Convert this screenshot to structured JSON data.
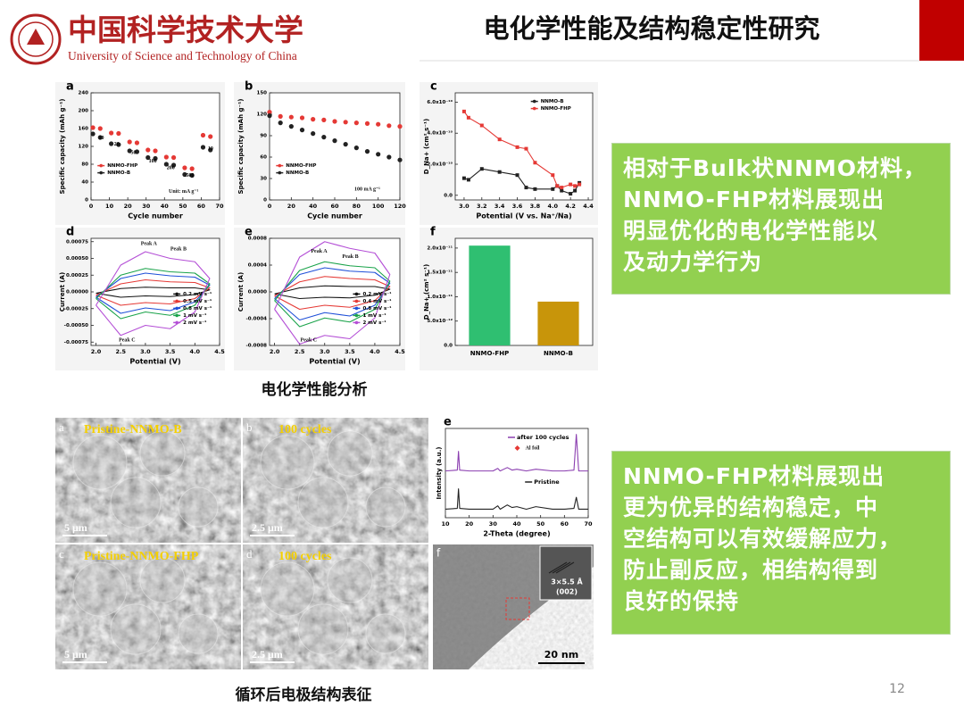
{
  "header": {
    "school_cn": "中国科学技术大学",
    "school_en": "University of Science and Technology of China",
    "title": "电化学性能及结构稳定性研究"
  },
  "chart_data": [
    {
      "type": "scatter",
      "label": "a",
      "xlabel": "Cycle number",
      "ylabel": "Specific capacity (mAh g⁻¹)",
      "xlim": [
        0,
        70
      ],
      "xticks": [
        0,
        10,
        20,
        30,
        40,
        50,
        60,
        70
      ],
      "ylim": [
        0,
        240
      ],
      "yticks": [
        0,
        40,
        80,
        120,
        160,
        200,
        240
      ],
      "legend": "lower left",
      "x": [
        1,
        5,
        11,
        15,
        21,
        25,
        31,
        35,
        41,
        45,
        51,
        55,
        61,
        65
      ],
      "series": [
        {
          "name": "NNMO-FHP",
          "color": "#e53935",
          "values": [
            162,
            160,
            150,
            149,
            130,
            128,
            112,
            110,
            96,
            95,
            72,
            70,
            145,
            142
          ]
        },
        {
          "name": "NNMO-B",
          "color": "#222222",
          "values": [
            148,
            140,
            126,
            124,
            110,
            108,
            95,
            93,
            80,
            78,
            57,
            55,
            118,
            112
          ]
        }
      ],
      "annotations": [
        "10",
        "20",
        "50",
        "100",
        "200",
        "500",
        "10",
        "Unit: mA g⁻¹"
      ]
    },
    {
      "type": "scatter",
      "label": "b",
      "xlabel": "Cycle number",
      "ylabel": "Specific capacity (mAh g⁻¹)",
      "xlim": [
        0,
        120
      ],
      "xticks": [
        0,
        20,
        40,
        60,
        80,
        100,
        120
      ],
      "ylim": [
        0,
        150
      ],
      "yticks": [
        0,
        30,
        60,
        90,
        120,
        150
      ],
      "legend": "lower left",
      "x": [
        0,
        10,
        20,
        30,
        40,
        50,
        60,
        70,
        80,
        90,
        100,
        110,
        120
      ],
      "series": [
        {
          "name": "NNMO-FHP",
          "color": "#e53935",
          "values": [
            123,
            117,
            116,
            115,
            113,
            112,
            110,
            109,
            108,
            107,
            106,
            104,
            103
          ]
        },
        {
          "name": "NNMO-B",
          "color": "#222222",
          "values": [
            118,
            108,
            103,
            98,
            93,
            88,
            83,
            78,
            73,
            68,
            64,
            60,
            56
          ]
        }
      ],
      "annotations": [
        "100 mA g⁻¹"
      ]
    },
    {
      "type": "line",
      "label": "c",
      "markers": true,
      "xlabel": "Potential (V vs. Na⁺/Na)",
      "ylabel": "D_Na+ (cm² s⁻¹)",
      "xlim": [
        2.9,
        4.45
      ],
      "xticks": [
        {
          "value": 3.0,
          "label": "3.0"
        },
        {
          "value": 3.2,
          "label": "3.2"
        },
        {
          "value": 3.4,
          "label": "3.4"
        },
        {
          "value": 3.6,
          "label": "3.6"
        },
        {
          "value": 3.8,
          "label": "3.8"
        },
        {
          "value": 4.0,
          "label": "4.0"
        },
        {
          "value": 4.2,
          "label": "4.2"
        },
        {
          "value": 4.4,
          "label": "4.4"
        }
      ],
      "ylim": [
        -3e-11,
        6.6e-10
      ],
      "yticks": [
        {
          "value": 0,
          "label": "0.0"
        },
        {
          "value": 2e-10,
          "label": "2.0x10⁻¹⁰"
        },
        {
          "value": 4e-10,
          "label": "4.0x10⁻¹⁰"
        },
        {
          "value": 6e-10,
          "label": "6.0x10⁻¹⁰"
        }
      ],
      "legend": "upper right",
      "x": [
        3.0,
        3.05,
        3.2,
        3.4,
        3.6,
        3.7,
        3.8,
        4.0,
        4.05,
        4.1,
        4.2,
        4.25,
        4.3
      ],
      "series": [
        {
          "name": "NNMO-B",
          "color": "#222222",
          "values": [
            1.1e-10,
            1e-10,
            1.7e-10,
            1.5e-10,
            1.3e-10,
            5e-11,
            4e-11,
            4e-11,
            6e-11,
            3e-11,
            1e-11,
            3e-11,
            8e-11
          ]
        },
        {
          "name": "NNMO-FHP",
          "color": "#e53935",
          "values": [
            5.4e-10,
            5e-10,
            4.5e-10,
            3.6e-10,
            3.1e-10,
            3e-10,
            2.1e-10,
            1.3e-10,
            6e-11,
            5e-11,
            7e-11,
            6e-11,
            7e-11
          ]
        }
      ]
    },
    {
      "type": "line",
      "label": "d",
      "xlabel": "Potential (V)",
      "ylabel": "Current (A)",
      "xlim": [
        1.9,
        4.5
      ],
      "xticks": [
        {
          "value": 2.0,
          "label": "2.0"
        },
        {
          "value": 2.5,
          "label": "2.5"
        },
        {
          "value": 3.0,
          "label": "3.0"
        },
        {
          "value": 3.5,
          "label": "3.5"
        },
        {
          "value": 4.0,
          "label": "4.0"
        },
        {
          "value": 4.5,
          "label": "4.5"
        }
      ],
      "ylim": [
        -0.0008,
        0.0008
      ],
      "yticks": [
        {
          "value": -0.00075,
          "label": "-0.00075"
        },
        {
          "value": -0.0005,
          "label": "-0.00050"
        },
        {
          "value": -0.00025,
          "label": "-0.00025"
        },
        {
          "value": 0,
          "label": "0.00000"
        },
        {
          "value": 0.00025,
          "label": "0.00025"
        },
        {
          "value": 0.0005,
          "label": "0.00050"
        },
        {
          "value": 0.00075,
          "label": "0.00075"
        }
      ],
      "legend": "lower right",
      "x": [
        2.0,
        2.5,
        3.0,
        3.5,
        4.0,
        4.3,
        4.0,
        3.5,
        3.0,
        2.5,
        2.0
      ],
      "series": [
        {
          "name": "0.2 mV s⁻¹",
          "color": "#111111",
          "values": [
            -2e-05,
            5e-05,
            7e-05,
            6e-05,
            6e-05,
            3e-05,
            -4e-05,
            -7e-05,
            -6e-05,
            -8e-05,
            -2e-05
          ]
        },
        {
          "name": "0.5 mV s⁻¹",
          "color": "#e53935",
          "values": [
            -5e-05,
            0.00012,
            0.00018,
            0.00015,
            0.00014,
            6e-05,
            -0.0001,
            -0.00018,
            -0.00016,
            -0.0002,
            -5e-05
          ]
        },
        {
          "name": "0.8 mV s⁻¹",
          "color": "#1e4fd8",
          "values": [
            -8e-05,
            0.0002,
            0.00028,
            0.00024,
            0.00022,
            0.0001,
            -0.00015,
            -0.00028,
            -0.00024,
            -0.00032,
            -8e-05
          ]
        },
        {
          "name": "1 mV s⁻¹",
          "color": "#1aa34a",
          "values": [
            -0.0001,
            0.00025,
            0.00035,
            0.0003,
            0.00028,
            0.00012,
            -0.0002,
            -0.00035,
            -0.0003,
            -0.0004,
            -0.0001
          ]
        },
        {
          "name": "2 mV s⁻¹",
          "color": "#b44fd6",
          "values": [
            -0.0002,
            0.0004,
            0.0006,
            0.0005,
            0.00045,
            0.0002,
            -0.0003,
            -0.00055,
            -0.0005,
            -0.00065,
            -0.0002
          ]
        }
      ],
      "annotations": [
        "Peak A",
        "Peak B",
        "Peak C"
      ]
    },
    {
      "type": "line",
      "label": "e",
      "xlabel": "Potential (V)",
      "ylabel": "Current (A)",
      "xlim": [
        1.9,
        4.5
      ],
      "xticks": [
        {
          "value": 2.0,
          "label": "2.0"
        },
        {
          "value": 2.5,
          "label": "2.5"
        },
        {
          "value": 3.0,
          "label": "3.0"
        },
        {
          "value": 3.5,
          "label": "3.5"
        },
        {
          "value": 4.0,
          "label": "4.0"
        },
        {
          "value": 4.5,
          "label": "4.5"
        }
      ],
      "ylim": [
        -0.0008,
        0.0008
      ],
      "yticks": [
        {
          "value": -0.0008,
          "label": "-0.0008"
        },
        {
          "value": -0.0004,
          "label": "-0.0004"
        },
        {
          "value": 0,
          "label": "0.0000"
        },
        {
          "value": 0.0004,
          "label": "0.0004"
        },
        {
          "value": 0.0008,
          "label": "0.0008"
        }
      ],
      "legend": "lower right",
      "x": [
        2.0,
        2.5,
        3.0,
        3.5,
        4.0,
        4.3,
        4.0,
        3.5,
        3.0,
        2.5,
        2.0
      ],
      "series": [
        {
          "name": "0.2 mV s⁻¹",
          "color": "#111111",
          "values": [
            -3e-05,
            6e-05,
            9e-05,
            8e-05,
            8e-05,
            4e-05,
            -5e-05,
            -9e-05,
            -8e-05,
            -0.0001,
            -3e-05
          ]
        },
        {
          "name": "0.4 mV s⁻¹",
          "color": "#e53935",
          "values": [
            -6e-05,
            0.00015,
            0.00023,
            0.0002,
            0.00018,
            8e-05,
            -0.00013,
            -0.00023,
            -0.0002,
            -0.00026,
            -6e-05
          ]
        },
        {
          "name": "0.8 mV s⁻¹",
          "color": "#1e4fd8",
          "values": [
            -0.0001,
            0.00026,
            0.00036,
            0.00031,
            0.00029,
            0.00013,
            -0.0002,
            -0.00036,
            -0.00031,
            -0.00042,
            -0.0001
          ]
        },
        {
          "name": "1 mV s⁻¹",
          "color": "#1aa34a",
          "values": [
            -0.00013,
            0.00032,
            0.00045,
            0.00039,
            0.00036,
            0.00016,
            -0.00026,
            -0.00045,
            -0.00039,
            -0.00052,
            -0.00013
          ]
        },
        {
          "name": "2 mV s⁻¹",
          "color": "#b44fd6",
          "values": [
            -0.00026,
            0.00052,
            0.00075,
            0.00065,
            0.00058,
            0.00026,
            -0.00039,
            -0.0007,
            -0.00065,
            -0.00078,
            -0.00026
          ]
        }
      ],
      "annotations": [
        "Peak A",
        "Peak B",
        "Peak C"
      ]
    },
    {
      "type": "bar",
      "label": "f",
      "ylabel": "D_Na+ (cm² s⁻¹)",
      "categories": [
        "NNMO-FHP",
        "NNMO-B"
      ],
      "values": [
        2.05e-11,
        9e-12
      ],
      "colors": [
        "#2fbf71",
        "#c8950a"
      ],
      "ylim": [
        0,
        2.2e-11
      ],
      "yticks": [
        {
          "value": 0,
          "label": "0.0"
        },
        {
          "value": 5e-12,
          "label": "5.0x10⁻¹²"
        },
        {
          "value": 1e-11,
          "label": "1.0x10⁻¹¹"
        },
        {
          "value": 1.5e-11,
          "label": "1.5x10⁻¹¹"
        },
        {
          "value": 2e-11,
          "label": "2.0x10⁻¹¹"
        }
      ]
    },
    {
      "type": "line",
      "label": "e",
      "xlabel": "2-Theta (degree)",
      "ylabel": "Intensity (a.u.)",
      "xlim": [
        10,
        70
      ],
      "xticks": [
        10,
        20,
        30,
        40,
        50,
        60,
        70
      ],
      "ylim": [
        0,
        10.5
      ],
      "yticks": [],
      "legend": "inline",
      "x": [
        10,
        15,
        15.5,
        16,
        20,
        25,
        30,
        32,
        33,
        36,
        38,
        40,
        44,
        48,
        55,
        60,
        64,
        65,
        66,
        70
      ],
      "series": [
        {
          "name": "after 100 cycles",
          "color": "#8b3fb0",
          "values": [
            5.5,
            5.6,
            7.8,
            5.6,
            5.5,
            5.5,
            5.5,
            5.8,
            5.5,
            5.9,
            5.6,
            5.7,
            5.5,
            5.7,
            5.5,
            5.5,
            5.6,
            9.8,
            5.5,
            5.5
          ]
        },
        {
          "name": "Pristine",
          "color": "#222222",
          "values": [
            1,
            1.1,
            3.4,
            1.1,
            1,
            1,
            1,
            1.4,
            1,
            1.5,
            1.2,
            1.3,
            1,
            1.3,
            1,
            1,
            1.1,
            2.4,
            1,
            1
          ]
        }
      ],
      "annotations": [
        "Al foil"
      ]
    }
  ],
  "top_caption": "电化学性能分析",
  "sem": {
    "panels": [
      {
        "letter": "a",
        "title": "Pristine-NNMO-B",
        "scale": "5 μm"
      },
      {
        "letter": "b",
        "title": "100 cycles",
        "scale": "2.5 μm"
      },
      {
        "letter": "c",
        "title": "Pristine-NNMO-FHP",
        "scale": "5 μm"
      },
      {
        "letter": "d",
        "title": "100 cycles",
        "scale": "2.5 μm"
      }
    ],
    "tem": {
      "letter": "f",
      "inset": "3×5.5 Å",
      "plane": "(002)",
      "scale": "20 nm"
    }
  },
  "bottom_caption": "循环后电极结构表征",
  "notes": [
    [
      "相对于Bulk状NNMO材料，",
      "NNMO-FHP材料展现出",
      "明显优化的电化学性能以",
      "及动力学行为"
    ],
    [
      "NNMO-FHP材料展现出",
      "更为优异的结构稳定，中",
      "空结构可以有效缓解应力，",
      "防止副反应，相结构得到",
      "良好的保持"
    ]
  ],
  "page_number": "12"
}
